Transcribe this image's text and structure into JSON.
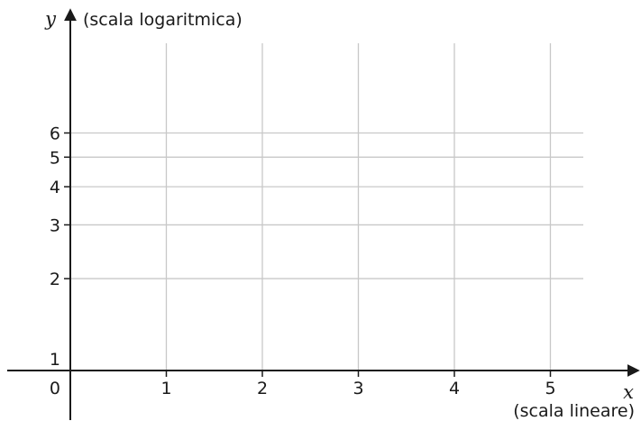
{
  "chart_data": {
    "type": "line",
    "x_scale": "linear",
    "y_scale": "log",
    "xlabel": "x",
    "ylabel": "y",
    "x_scale_note": "(scala lineare)",
    "y_scale_note": "(scala logaritmica)",
    "origin_label": "0",
    "x_ticks": [
      1,
      2,
      3,
      4,
      5
    ],
    "y_ticks": [
      1,
      2,
      3,
      4,
      5,
      6
    ],
    "xlim": [
      0,
      5.4
    ],
    "ylim": [
      1,
      6.5
    ],
    "grid": true,
    "series": []
  }
}
